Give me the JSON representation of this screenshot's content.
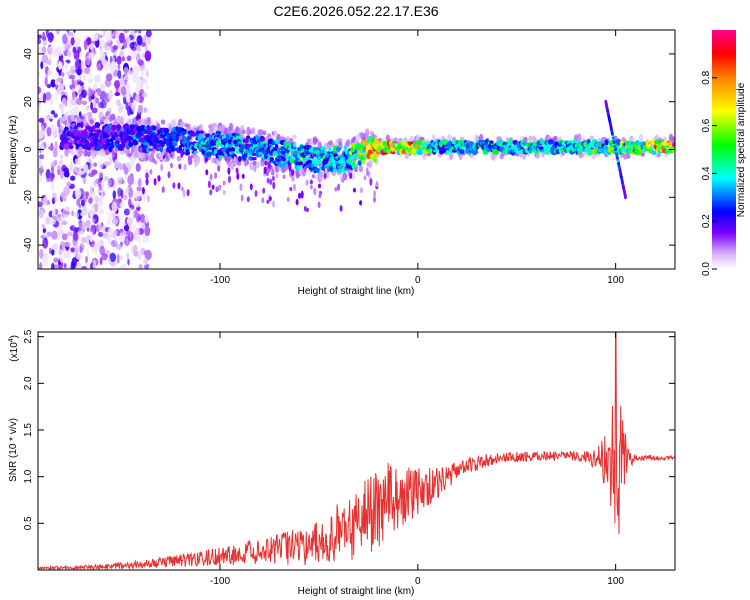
{
  "title": "C2E6.2026.052.22.17.E36",
  "chart_data": [
    {
      "type": "heatmap",
      "name": "spectrogram",
      "xlabel": "Height of straight line (km)",
      "ylabel": "Frequency (Hz)",
      "xlim": [
        -192,
        130
      ],
      "ylim": [
        -50,
        50
      ],
      "xticks": [
        -100,
        0,
        100
      ],
      "xtick_labels": [
        "-100",
        "0",
        "100"
      ],
      "yticks": [
        -40,
        -20,
        0,
        20,
        40
      ],
      "ytick_labels": [
        "-40",
        "-20",
        "0",
        "20",
        "40"
      ],
      "colorbar": {
        "label": "Normalized spectral amplitude",
        "range": [
          0,
          1
        ],
        "ticks": [
          0,
          0.2,
          0.4,
          0.6,
          0.8
        ],
        "tick_labels": [
          "0.0",
          "0.2",
          "0.4",
          "0.6",
          "0.8"
        ],
        "colormap": [
          "#ffffff",
          "#c8a0f0",
          "#7a00ff",
          "#0000ff",
          "#00ffff",
          "#00ff00",
          "#ffff00",
          "#ff8000",
          "#ff0000",
          "#ff0080"
        ]
      },
      "ridge": {
        "x": [
          -175,
          -150,
          -125,
          -100,
          -80,
          -60,
          -45,
          -35,
          -25,
          -15,
          -5,
          10,
          40,
          70,
          95,
          100,
          130
        ],
        "freq": [
          6,
          5,
          4,
          2,
          0,
          -3,
          -5,
          -4,
          0,
          1,
          1,
          1,
          1,
          1,
          1,
          1,
          1
        ],
        "amplitude": [
          0.25,
          0.3,
          0.35,
          0.4,
          0.4,
          0.45,
          0.45,
          0.5,
          0.8,
          0.9,
          0.9,
          0.45,
          0.45,
          0.5,
          0.55,
          0.6,
          0.9
        ]
      },
      "noise_region_x": [
        -192,
        -140
      ],
      "spike_x": 100,
      "spike_freq_range": [
        -20,
        20
      ]
    },
    {
      "type": "line",
      "name": "snr",
      "xlabel": "Height of straight line (km)",
      "ylabel": "SNR (10 * v/v)",
      "scale_label": "(x10",
      "scale_exp": "4",
      "scale_close": ")",
      "xlim": [
        -192,
        130
      ],
      "ylim": [
        0,
        2.55
      ],
      "xticks": [
        -100,
        0,
        100
      ],
      "xtick_labels": [
        "-100",
        "0",
        "100"
      ],
      "yticks": [
        0.5,
        1.0,
        1.5,
        2.0,
        2.5
      ],
      "ytick_labels": [
        "0.5",
        "1.0",
        "1.5",
        "2.0",
        "2.5"
      ],
      "color": "#e83030",
      "envelope": {
        "x": [
          -192,
          -160,
          -140,
          -120,
          -100,
          -80,
          -60,
          -45,
          -35,
          -25,
          -15,
          -5,
          5,
          15,
          25,
          40,
          60,
          80,
          90,
          95,
          100,
          105,
          110,
          130
        ],
        "y": [
          0.02,
          0.03,
          0.06,
          0.1,
          0.15,
          0.2,
          0.25,
          0.3,
          0.45,
          0.6,
          0.75,
          0.8,
          0.88,
          1.0,
          1.12,
          1.2,
          1.22,
          1.22,
          1.2,
          1.2,
          1.2,
          1.2,
          1.2,
          1.2
        ]
      },
      "noise_amplitude": {
        "x": [
          -192,
          -140,
          -100,
          -75,
          -60,
          -50,
          -40,
          -30,
          -20,
          -10,
          0,
          10,
          20,
          40,
          60,
          85,
          92,
          96,
          100,
          103,
          106,
          110,
          130
        ],
        "y": [
          0.01,
          0.04,
          0.1,
          0.15,
          0.2,
          0.25,
          0.35,
          0.4,
          0.45,
          0.35,
          0.25,
          0.18,
          0.1,
          0.06,
          0.05,
          0.06,
          0.15,
          0.4,
          1.3,
          0.5,
          0.15,
          0.03,
          0.02
        ]
      },
      "spike_x": 100,
      "spike_peak": 2.55
    }
  ]
}
